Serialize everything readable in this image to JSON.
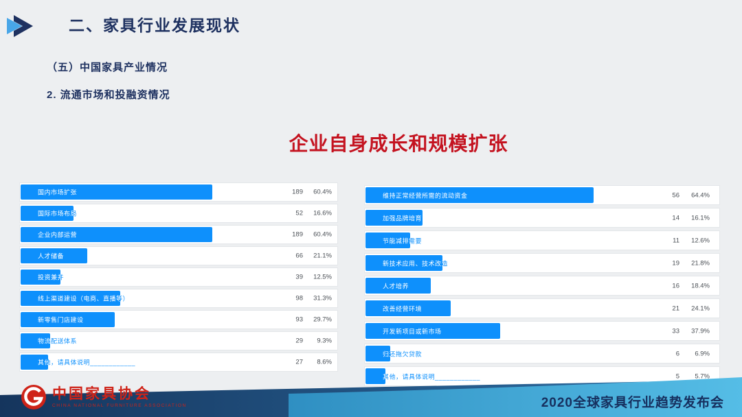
{
  "slide": {
    "section_title": "二、家具行业发展现状",
    "subtitle1": "（五）中国家具产业情况",
    "subtitle2": "2. 流通市场和投融资情况",
    "main_title": "企业自身成长和规模扩张",
    "footer_title": "2020全球家具行业趋势发布会",
    "logo_cn": "中国家具协会",
    "logo_en": "CHINA NATIONAL FURNITURE ASSOCIATION"
  },
  "colors": {
    "bar_blue": "#0e90fc",
    "title_red": "#c41320",
    "heading_navy": "#1e3160",
    "footer_navy": "#162f5e",
    "band_dark_left": "#15355d",
    "band_dark_right": "#2f72a8",
    "band_light_left": "#2f8fc2",
    "band_light_right": "#55bde6",
    "logo_red": "#cf2318"
  },
  "icons": {
    "header_arrow": "double-arrow-icon",
    "logo": "association-logo-icon"
  },
  "chart_data": [
    {
      "type": "bar",
      "orientation": "horizontal",
      "legend_position": "none",
      "grid": false,
      "value_columns": [
        "count",
        "percent"
      ],
      "xlim_percent": [
        0,
        100
      ],
      "rows": [
        {
          "label": "国内市场扩张",
          "count": 189,
          "pct": "60.4%"
        },
        {
          "label": "国际市场布局",
          "count": 52,
          "pct": "16.6%"
        },
        {
          "label": "企业内部运营",
          "count": 189,
          "pct": "60.4%"
        },
        {
          "label": "人才储备",
          "count": 66,
          "pct": "21.1%"
        },
        {
          "label": "投资兼并",
          "count": 39,
          "pct": "12.5%"
        },
        {
          "label": "线上渠道建设（电商、直播等）",
          "count": 98,
          "pct": "31.3%"
        },
        {
          "label": "新零售门店建设",
          "count": 93,
          "pct": "29.7%"
        },
        {
          "label": "物流配送体系",
          "count": 29,
          "pct": "9.3%"
        },
        {
          "label": "其他，请具体说明____________",
          "count": 27,
          "pct": "8.6%"
        }
      ]
    },
    {
      "type": "bar",
      "orientation": "horizontal",
      "legend_position": "none",
      "grid": false,
      "value_columns": [
        "count",
        "percent"
      ],
      "xlim_percent": [
        0,
        100
      ],
      "rows": [
        {
          "label": "维持正常经营所需的流动资金",
          "count": 56,
          "pct": "64.4%"
        },
        {
          "label": "加强品牌培育",
          "count": 14,
          "pct": "16.1%"
        },
        {
          "label": "节能减排需要",
          "count": 11,
          "pct": "12.6%"
        },
        {
          "label": "新技术应用、技术改造",
          "count": 19,
          "pct": "21.8%"
        },
        {
          "label": "人才培养",
          "count": 16,
          "pct": "18.4%"
        },
        {
          "label": "改善经营环境",
          "count": 21,
          "pct": "24.1%"
        },
        {
          "label": "开发新项目或新市场",
          "count": 33,
          "pct": "37.9%"
        },
        {
          "label": "归还拖欠贷款",
          "count": 6,
          "pct": "6.9%"
        },
        {
          "label": "其他，请具体说明____________",
          "count": 5,
          "pct": "5.7%"
        }
      ]
    }
  ]
}
